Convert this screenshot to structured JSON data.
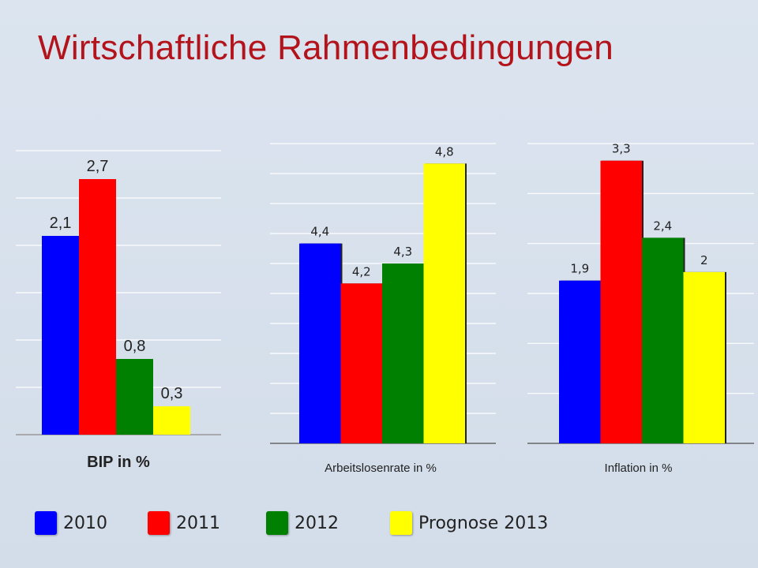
{
  "title": "Wirtschaftliche Rahmenbedingungen",
  "colors": {
    "2010": "#0000ff",
    "2011": "#ff0000",
    "2012": "#008000",
    "2013": "#ffff00"
  },
  "legend": [
    {
      "label": "2010",
      "color": "#0000ff"
    },
    {
      "label": "2011",
      "color": "#ff0000"
    },
    {
      "label": "2012",
      "color": "#008000"
    },
    {
      "label": "Prognose 2013",
      "color": "#ffff00"
    }
  ],
  "chart_data": [
    {
      "type": "bar",
      "xlabel": "BIP in %",
      "categories": [
        "2010",
        "2011",
        "2012",
        "Prognose 2013"
      ],
      "values": [
        2.1,
        2.7,
        0.8,
        0.3
      ],
      "value_labels": [
        "2,1",
        "2,7",
        "0,8",
        "0,3"
      ],
      "ylim": [
        0,
        3
      ],
      "grid": true
    },
    {
      "type": "bar",
      "xlabel": "Arbeitslosenrate in %",
      "categories": [
        "2010",
        "2011",
        "2012",
        "Prognose 2013"
      ],
      "values": [
        4.4,
        4.2,
        4.3,
        4.8
      ],
      "value_labels": [
        "4,4",
        "4,2",
        "4,3",
        "4,8"
      ],
      "ylim": [
        3.4,
        4.9
      ],
      "grid": true
    },
    {
      "type": "bar",
      "xlabel": "Inflation in %",
      "categories": [
        "2010",
        "2011",
        "2012",
        "Prognose 2013"
      ],
      "values": [
        1.9,
        3.3,
        2.4,
        2.0
      ],
      "value_labels": [
        "1,9",
        "3,3",
        "2,4",
        "2"
      ],
      "ylim": [
        0,
        3.5
      ],
      "grid": true
    }
  ]
}
